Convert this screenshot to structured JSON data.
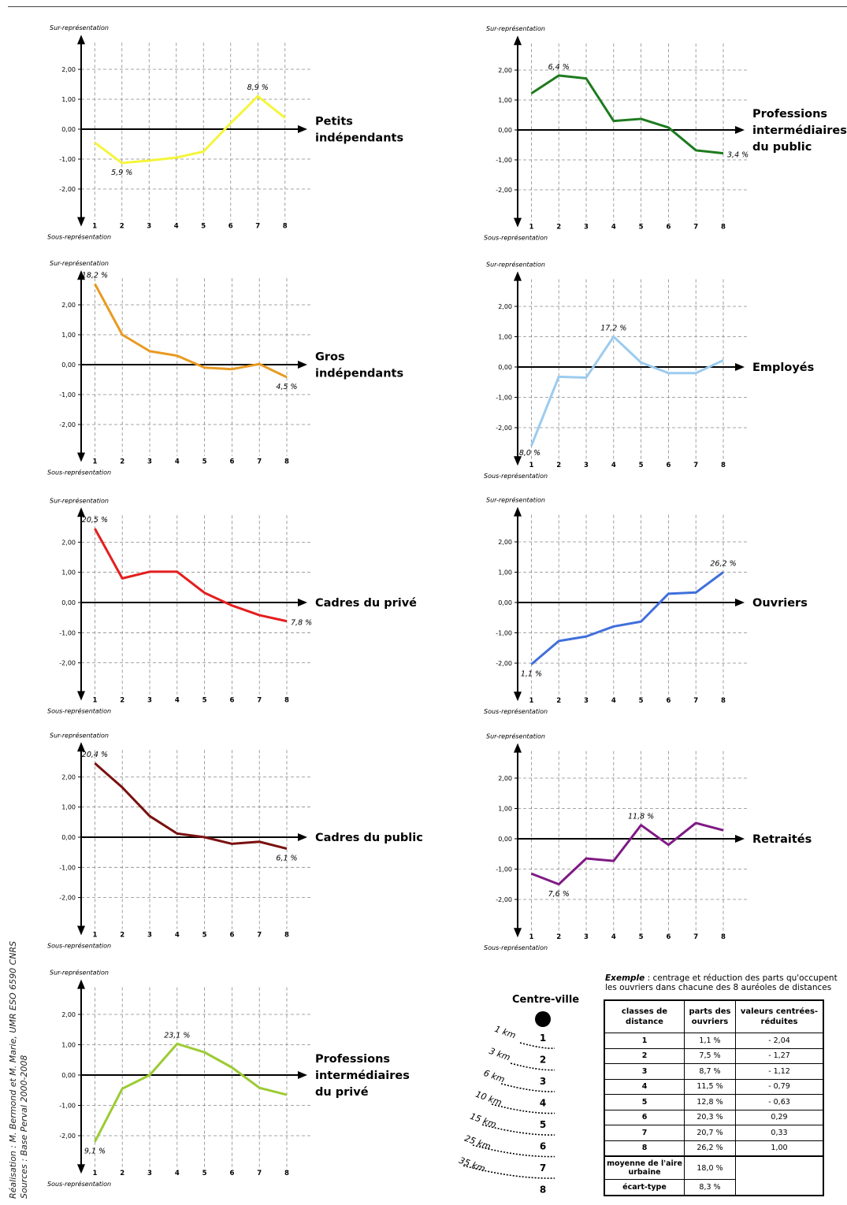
{
  "axis": {
    "top_label": "Sur-représentation",
    "bottom_label": "Sous-représentation",
    "y_ticks": [
      "2,00",
      "1,00",
      "0,00",
      "-1,00",
      "-2,00"
    ],
    "x_ticks": [
      "1",
      "2",
      "3",
      "4",
      "5",
      "6",
      "7",
      "8"
    ]
  },
  "chart_data": [
    {
      "type": "line",
      "name": "Petits indépendants",
      "title_lines": [
        "Petits",
        "indépendants"
      ],
      "color": "#f5f53a",
      "x": [
        1,
        2,
        3,
        4,
        5,
        6,
        7,
        8
      ],
      "y": [
        -0.45,
        -1.13,
        -1.05,
        -0.95,
        -0.75,
        0.2,
        1.1,
        0.38
      ],
      "ylim": [
        -2.5,
        2.5
      ],
      "annotations": [
        {
          "x": 2,
          "text": "5,9 %",
          "pos": "below"
        },
        {
          "x": 7,
          "text": "8,9 %",
          "pos": "above"
        }
      ]
    },
    {
      "type": "line",
      "name": "Professions intermédiaires du public",
      "title_lines": [
        "Professions",
        "intermédiaires",
        "du public"
      ],
      "color": "#1e7b1e",
      "x": [
        1,
        2,
        3,
        4,
        5,
        6,
        7,
        8
      ],
      "y": [
        1.22,
        1.82,
        1.72,
        0.3,
        0.37,
        0.08,
        -0.68,
        -0.78
      ],
      "ylim": [
        -2.5,
        2.5
      ],
      "annotations": [
        {
          "x": 2,
          "text": "6,4 %",
          "pos": "above"
        },
        {
          "x": 8,
          "text": "3,4 %",
          "pos": "right"
        }
      ]
    },
    {
      "type": "line",
      "name": "Gros indépendants",
      "title_lines": [
        "Gros",
        "indépendants"
      ],
      "color": "#e89a22",
      "x": [
        1,
        2,
        3,
        4,
        5,
        6,
        7,
        8
      ],
      "y": [
        2.7,
        1.0,
        0.45,
        0.3,
        -0.1,
        -0.15,
        0.02,
        -0.42
      ],
      "ylim": [
        -2.5,
        2.5
      ],
      "annotations": [
        {
          "x": 1,
          "text": "18,2 %",
          "pos": "above"
        },
        {
          "x": 8,
          "text": "4,5 %",
          "pos": "below"
        }
      ]
    },
    {
      "type": "line",
      "name": "Employés",
      "title_lines": [
        "Employés"
      ],
      "color": "#9ccbef",
      "x": [
        1,
        2,
        3,
        4,
        5,
        6,
        7,
        8
      ],
      "y": [
        -2.6,
        -0.32,
        -0.35,
        1.0,
        0.15,
        -0.2,
        -0.2,
        0.22
      ],
      "ylim": [
        -2.5,
        2.5
      ],
      "annotations": [
        {
          "x": 1,
          "text": "8,0 %",
          "pos": "left-below"
        },
        {
          "x": 4,
          "text": "17,2 %",
          "pos": "above"
        }
      ]
    },
    {
      "type": "line",
      "name": "Cadres du privé",
      "title_lines": [
        "Cadres du privé"
      ],
      "color": "#e41e1e",
      "x": [
        1,
        2,
        3,
        4,
        5,
        6,
        7,
        8
      ],
      "y": [
        2.45,
        0.8,
        1.02,
        1.02,
        0.32,
        -0.1,
        -0.42,
        -0.62
      ],
      "ylim": [
        -2.5,
        2.5
      ],
      "annotations": [
        {
          "x": 1,
          "text": "20,5 %",
          "pos": "above"
        },
        {
          "x": 8,
          "text": "7,8 %",
          "pos": "right"
        }
      ]
    },
    {
      "type": "line",
      "name": "Ouvriers",
      "title_lines": [
        "Ouvriers"
      ],
      "color": "#3f6fdc",
      "x": [
        1,
        2,
        3,
        4,
        5,
        6,
        7,
        8
      ],
      "y": [
        -2.04,
        -1.27,
        -1.12,
        -0.79,
        -0.63,
        0.29,
        0.33,
        1.0
      ],
      "ylim": [
        -2.5,
        2.5
      ],
      "annotations": [
        {
          "x": 1,
          "text": "1,1 %",
          "pos": "below"
        },
        {
          "x": 8,
          "text": "26,2 %",
          "pos": "above"
        }
      ]
    },
    {
      "type": "line",
      "name": "Cadres du public",
      "title_lines": [
        "Cadres du public"
      ],
      "color": "#7a1010",
      "x": [
        1,
        2,
        3,
        4,
        5,
        6,
        7,
        8
      ],
      "y": [
        2.45,
        1.65,
        0.7,
        0.12,
        0.0,
        -0.22,
        -0.15,
        -0.38
      ],
      "ylim": [
        -2.5,
        2.5
      ],
      "annotations": [
        {
          "x": 1,
          "text": "20,4 %",
          "pos": "above"
        },
        {
          "x": 8,
          "text": "6,1 %",
          "pos": "below"
        }
      ]
    },
    {
      "type": "line",
      "name": "Retraités",
      "title_lines": [
        "Retraités"
      ],
      "color": "#7f1a84",
      "x": [
        1,
        2,
        3,
        4,
        5,
        6,
        7,
        8
      ],
      "y": [
        -1.15,
        -1.5,
        -0.65,
        -0.73,
        0.45,
        -0.2,
        0.52,
        0.28
      ],
      "ylim": [
        -2.5,
        2.5
      ],
      "annotations": [
        {
          "x": 2,
          "text": "7,6 %",
          "pos": "below"
        },
        {
          "x": 5,
          "text": "11,8 %",
          "pos": "above"
        }
      ]
    },
    {
      "type": "line",
      "name": "Professions intermédiaires du privé",
      "title_lines": [
        "Professions",
        "intermédiaires",
        "du privé"
      ],
      "color": "#9ccb34",
      "x": [
        1,
        2,
        3,
        4,
        5,
        6,
        7,
        8
      ],
      "y": [
        -2.2,
        -0.45,
        0.0,
        1.03,
        0.75,
        0.25,
        -0.42,
        -0.65
      ],
      "ylim": [
        -2.5,
        2.5
      ],
      "annotations": [
        {
          "x": 1,
          "text": "9,1 %",
          "pos": "below"
        },
        {
          "x": 4,
          "text": "23,1 %",
          "pos": "above"
        }
      ]
    }
  ],
  "credits": {
    "line1": "Réalisation : M. Bermond et M. Marie, UMR ESO 6590 CNRS",
    "line2": "Sources : Base Perval 2000-2008"
  },
  "centre_ville": {
    "title": "Centre-ville",
    "rings": [
      {
        "num": "1",
        "dist": "1 km"
      },
      {
        "num": "2",
        "dist": "3 km"
      },
      {
        "num": "3",
        "dist": "6 km"
      },
      {
        "num": "4",
        "dist": "10 km"
      },
      {
        "num": "5",
        "dist": "15 km"
      },
      {
        "num": "6",
        "dist": "25 km"
      },
      {
        "num": "7",
        "dist": "35 km"
      },
      {
        "num": "8",
        "dist": ""
      }
    ]
  },
  "example": {
    "title_bold": "Exemple",
    "title_rest": " : centrage et réduction des parts qu'occupent les ouvriers dans chacune des 8 auréoles de distances",
    "headers": [
      "classes de distance",
      "parts des ouvriers",
      "valeurs centrées-réduites"
    ],
    "rows": [
      [
        "1",
        "1,1 %",
        "- 2,04"
      ],
      [
        "2",
        "7,5 %",
        "- 1,27"
      ],
      [
        "3",
        "8,7 %",
        "- 1,12"
      ],
      [
        "4",
        "11,5 %",
        "- 0,79"
      ],
      [
        "5",
        "12,8 %",
        "- 0,63"
      ],
      [
        "6",
        "20,3 %",
        "0,29"
      ],
      [
        "7",
        "20,7 %",
        "0,33"
      ],
      [
        "8",
        "26,2 %",
        "1,00"
      ]
    ],
    "mean_label": "moyenne de l'aire urbaine",
    "mean_value": "18,0 %",
    "sd_label": "écart-type",
    "sd_value": "8,3 %"
  }
}
